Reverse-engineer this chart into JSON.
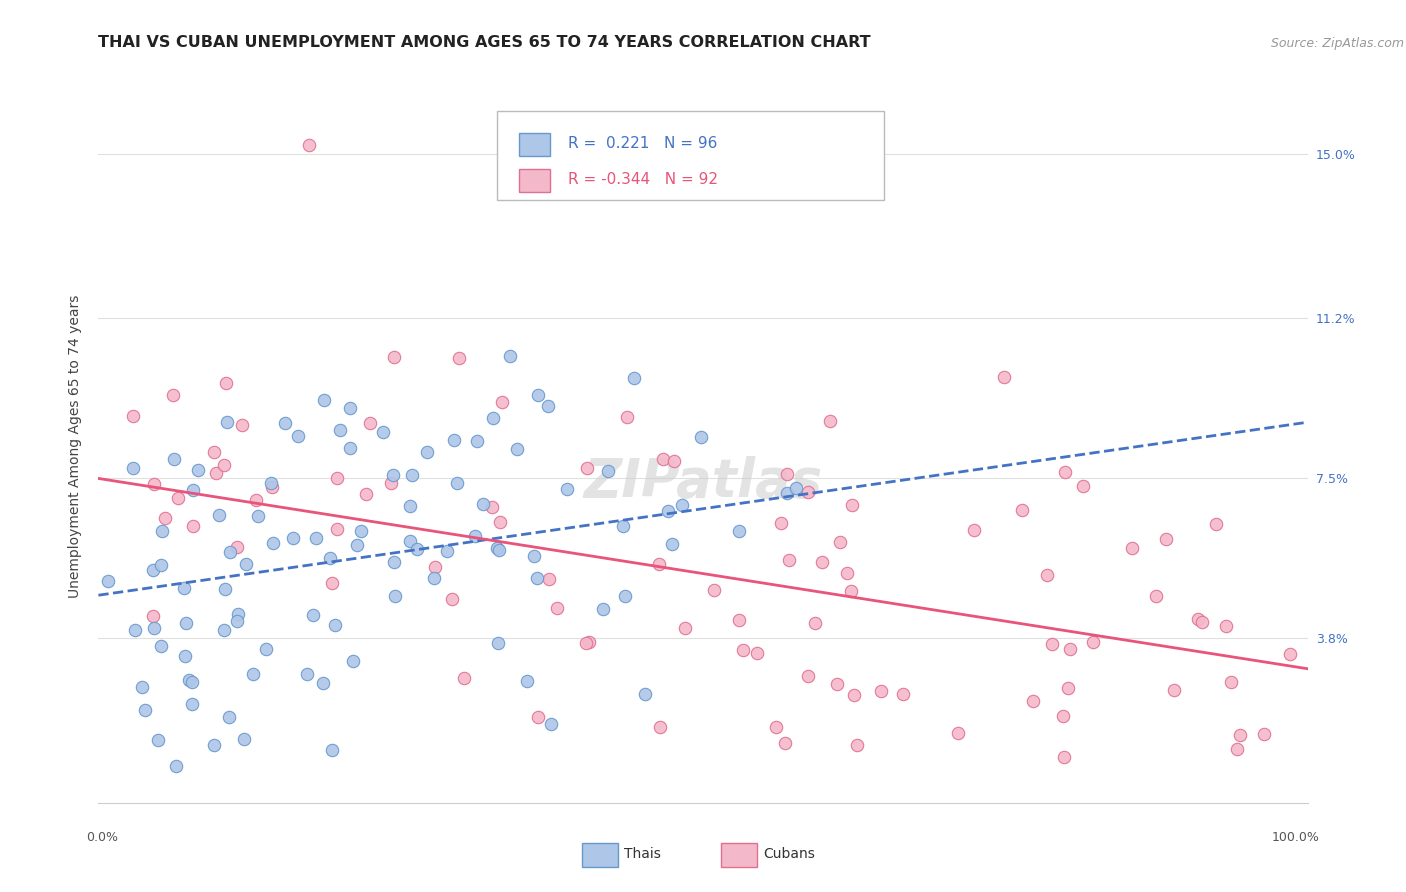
{
  "title": "THAI VS CUBAN UNEMPLOYMENT AMONG AGES 65 TO 74 YEARS CORRELATION CHART",
  "source": "Source: ZipAtlas.com",
  "ylabel": "Unemployment Among Ages 65 to 74 years",
  "thai_R": 0.221,
  "thai_N": 96,
  "cuban_R": -0.344,
  "cuban_N": 92,
  "thai_color": "#aec6e8",
  "cuban_color": "#f4b8cb",
  "thai_edge_color": "#6699cc",
  "cuban_edge_color": "#e07090",
  "thai_line_color": "#4472c4",
  "cuban_line_color": "#e8547a",
  "background_color": "#ffffff",
  "grid_color": "#e0e0e0",
  "title_color": "#222222",
  "source_color": "#999999",
  "ytick_color": "#4472c4",
  "xtick_color": "#555555",
  "title_fontsize": 11.5,
  "axis_label_fontsize": 10,
  "tick_fontsize": 9,
  "legend_fontsize": 11,
  "source_fontsize": 9,
  "xlim": [
    0.0,
    1.0
  ],
  "ylim": [
    0.0,
    0.165
  ],
  "ytick_vals": [
    0.0,
    0.038,
    0.075,
    0.112,
    0.15
  ],
  "ytick_labels": [
    "",
    "3.8%",
    "7.5%",
    "11.2%",
    "15.0%"
  ],
  "figsize": [
    14.06,
    8.92
  ],
  "dpi": 100
}
